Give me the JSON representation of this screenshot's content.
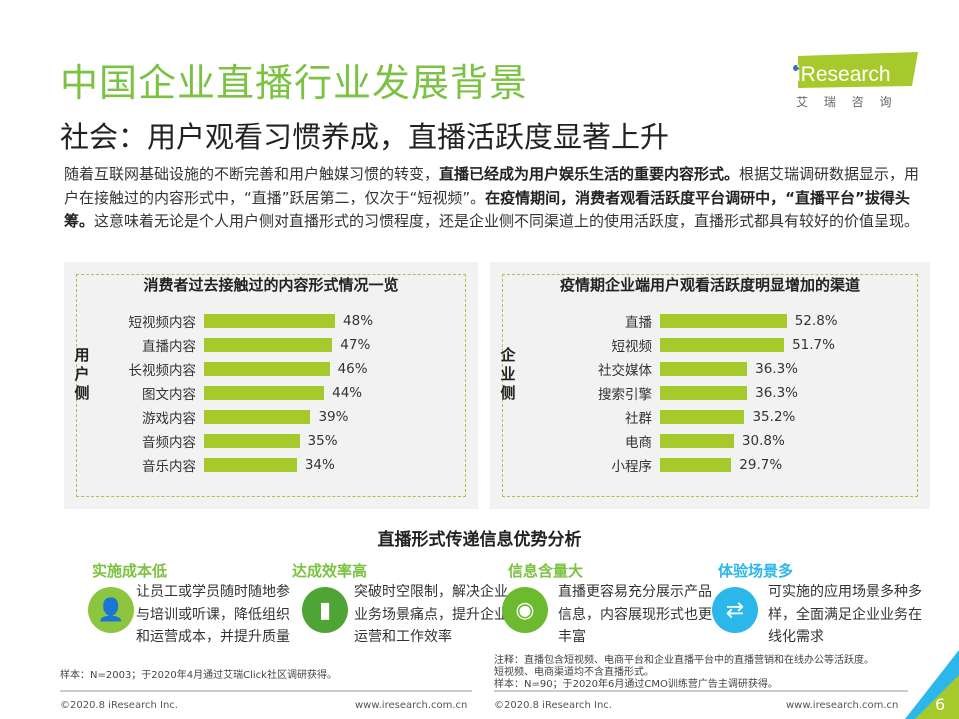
{
  "header": {
    "title": "中国企业直播行业发展背景",
    "subtitle": "社会：用户观看习惯养成，直播活跃度显著上升",
    "logo_text": "iResearch",
    "logo_cn": "艾 瑞 咨 询"
  },
  "intro": {
    "p1": "随着互联网基础设施的不断完善和用户触媒习惯的转变，",
    "b1": "直播已经成为用户娱乐生活的重要内容形式。",
    "p2": "根据艾瑞调研数据显示，用户在接触过的内容形式中，“直播”跃居第二，仅次于“短视频”。",
    "b2": "在疫情期间，消费者观看活跃度平台调研中，“直播平台”拔得头筹。",
    "p3": "这意味着无论是个人用户侧对直播形式的习惯程度，还是企业侧不同渠道上的使用活跃度，直播形式都具有较好的价值呈现。"
  },
  "chart_data": [
    {
      "type": "bar",
      "orientation": "horizontal",
      "title": "消费者过去接触过的内容形式情况一览",
      "side_label": "用户侧",
      "categories": [
        "短视频内容",
        "直播内容",
        "长视频内容",
        "图文内容",
        "游戏内容",
        "音频内容",
        "音乐内容"
      ],
      "values": [
        48,
        47,
        46,
        44,
        39,
        35,
        34
      ],
      "labels": [
        "48%",
        "47%",
        "46%",
        "44%",
        "39%",
        "35%",
        "34%"
      ],
      "color": "#a6c92b"
    },
    {
      "type": "bar",
      "orientation": "horizontal",
      "title": "疫情期企业端用户观看活跃度明显增加的渠道",
      "side_label": "企业侧",
      "categories": [
        "直播",
        "短视频",
        "社交媒体",
        "搜索引擎",
        "社群",
        "电商",
        "小程序"
      ],
      "values": [
        52.8,
        51.7,
        36.3,
        36.3,
        35.2,
        30.8,
        29.7
      ],
      "labels": [
        "52.8%",
        "51.7%",
        "36.3%",
        "36.3%",
        "35.2%",
        "30.8%",
        "29.7%"
      ],
      "color": "#a6c92b"
    }
  ],
  "advantages": {
    "title": "直播形式传递信息优势分析",
    "items": [
      {
        "title": "实施成本低",
        "desc": "让员工或学员随时随地参与培训或听课，降低组织和运营成本，并提升质量",
        "color": "#8cc63f",
        "icon": "user-icon"
      },
      {
        "title": "达成效率高",
        "desc": "突破时空限制，解决企业业务场景痛点，提升企业运营和工作效率",
        "color": "#4ea535",
        "icon": "bar-chart-icon"
      },
      {
        "title": "信息含量大",
        "desc": "直播更容易充分展示产品信息，内容展现形式也更丰富",
        "color": "#6cba2f",
        "icon": "eye-icon"
      },
      {
        "title": "体验场景多",
        "desc": "可实施的应用场景多种多样，全面满足企业业务在线化需求",
        "color": "#2cb7ea",
        "icon": "exchange-users-icon"
      }
    ]
  },
  "notes": {
    "left": "样本：N=2003；于2020年4月通过艾瑞Click社区调研获得。",
    "right1": "注释：直播包含短视频、电商平台和企业直播平台中的直播营销和在线办公等活跃度。",
    "right2": "短视频、电商渠道均不含直播形式。",
    "right3": "样本：N=90；于2020年6月通过CMO训练营广告主调研获得。"
  },
  "footer": {
    "copyright_left": "©2020.8 iResearch Inc.",
    "url_left": "www.iresearch.com.cn",
    "copyright_right": "©2020.8 iResearch Inc.",
    "url_right": "www.iresearch.com.cn",
    "page": "6"
  }
}
